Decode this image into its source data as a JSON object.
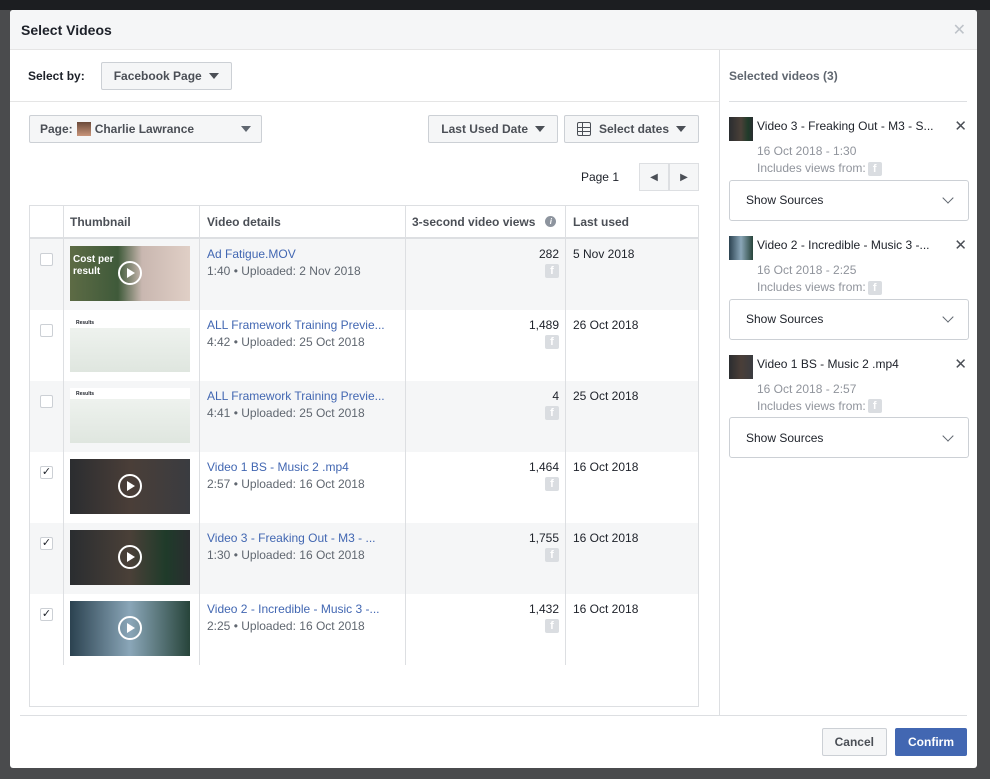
{
  "dialog": {
    "title": "Select Videos"
  },
  "select_by": {
    "label": "Select by:",
    "value": "Facebook Page"
  },
  "filters": {
    "page_label": "Page:",
    "page_name": "Charlie Lawrance",
    "sort": "Last Used Date",
    "dates": "Select dates"
  },
  "pager": {
    "label": "Page 1"
  },
  "table": {
    "headers": [
      "Thumbnail",
      "Video details",
      "3-second video views",
      "Last used"
    ],
    "rows": [
      {
        "title": "Ad Fatigue.MOV",
        "meta": "1:40 • Uploaded: 2 Nov 2018",
        "views": "282",
        "last_used": "5 Nov 2018",
        "checked": false,
        "thumb_text": "Cost per result"
      },
      {
        "title": "ALL Framework Training Previe...",
        "meta": "4:42 • Uploaded: 25 Oct 2018",
        "views": "1,489",
        "last_used": "26 Oct 2018",
        "checked": false,
        "thumb_text": "Results"
      },
      {
        "title": "ALL Framework Training Previe...",
        "meta": "4:41 • Uploaded: 25 Oct 2018",
        "views": "4",
        "last_used": "25 Oct 2018",
        "checked": false,
        "thumb_text": "Results"
      },
      {
        "title": "Video 1 BS - Music 2 .mp4",
        "meta": "2:57 • Uploaded: 16 Oct 2018",
        "views": "1,464",
        "last_used": "16 Oct 2018",
        "checked": true
      },
      {
        "title": "Video 3 - Freaking Out - M3 - ...",
        "meta": "1:30 • Uploaded: 16 Oct 2018",
        "views": "1,755",
        "last_used": "16 Oct 2018",
        "checked": true
      },
      {
        "title": "Video 2 - Incredible - Music 3 -...",
        "meta": "2:25 • Uploaded: 16 Oct 2018",
        "views": "1,432",
        "last_used": "16 Oct 2018",
        "checked": true
      }
    ]
  },
  "selected": {
    "title": "Selected videos (3)",
    "includes_label": "Includes views from:",
    "sources_label": "Show Sources",
    "items": [
      {
        "name": "Video 3 - Freaking Out - M3 - S...",
        "sub": "16 Oct 2018 - 1:30"
      },
      {
        "name": "Video 2 - Incredible - Music 3 -...",
        "sub": "16 Oct 2018 - 2:25"
      },
      {
        "name": "Video 1 BS - Music 2 .mp4",
        "sub": "16 Oct 2018 - 2:57"
      }
    ]
  },
  "footer": {
    "cancel": "Cancel",
    "confirm": "Confirm"
  },
  "colors": {
    "accent": "#4267b2",
    "link": "#4267b2"
  }
}
